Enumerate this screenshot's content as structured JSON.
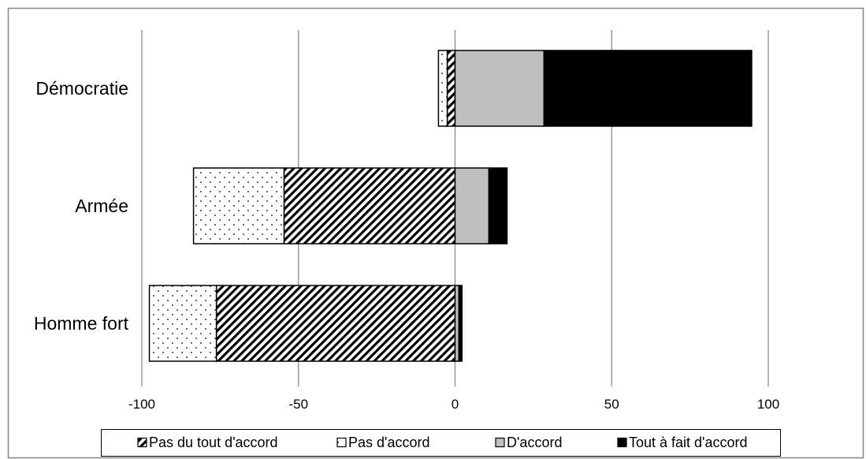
{
  "chart_data": {
    "type": "bar",
    "orientation": "horizontal",
    "stacking": "diverging",
    "categories": [
      "Démocratie",
      "Armée",
      "Homme fort"
    ],
    "series": [
      {
        "name": "Pas du tout d'accord",
        "values": [
          -2.5,
          -54.6,
          -76.2
        ],
        "pattern": "hatch-pattern"
      },
      {
        "name": "Pas d'accord",
        "values": [
          -2.8,
          -28.9,
          -21.4
        ],
        "pattern": "dots-pattern"
      },
      {
        "name": "D'accord",
        "values": [
          28.4,
          10.8,
          1.2
        ],
        "color": "#bfbfbf"
      },
      {
        "name": "Tout à fait d'accord",
        "values": [
          66.3,
          5.8,
          1.0
        ],
        "color": "#000000"
      }
    ],
    "xlim": [
      -100,
      100
    ],
    "xticks": [
      -100,
      -50,
      0,
      50,
      100
    ],
    "grid": "vertical",
    "legend_position": "bottom"
  }
}
